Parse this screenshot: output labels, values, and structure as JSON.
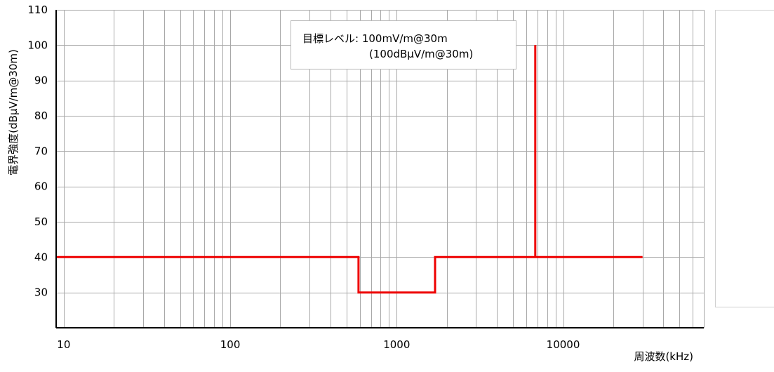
{
  "chart_data": {
    "type": "line",
    "xlabel": "周波数(kHz)",
    "ylabel": "電界強度(dBμV/m@30m)",
    "xscale": "log",
    "xlim": [
      9,
      70000
    ],
    "ylim": [
      20,
      110
    ],
    "x_ticks": [
      10,
      100,
      1000,
      10000
    ],
    "x_tick_labels": [
      "10",
      "100",
      "1000",
      "10000"
    ],
    "y_ticks": [
      30,
      40,
      50,
      60,
      70,
      80,
      90,
      100,
      110
    ],
    "y_tick_labels": [
      "30",
      "40",
      "50",
      "60",
      "70",
      "80",
      "90",
      "100",
      "110"
    ],
    "grid": true,
    "series": [
      {
        "color": "#ee0000",
        "x": [
          9,
          590,
          590,
          1700,
          1700,
          6800,
          6800,
          6800,
          30000
        ],
        "y": [
          40,
          40,
          30,
          30,
          40,
          40,
          100,
          40,
          40
        ]
      }
    ],
    "annotations": [
      {
        "line1": "目標レベル:  100mV/m@30m",
        "line2": "(100dBμV/m@30m)"
      }
    ]
  }
}
